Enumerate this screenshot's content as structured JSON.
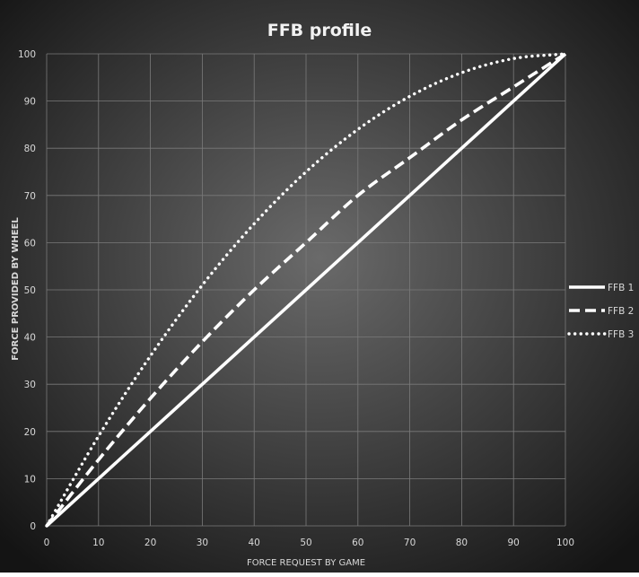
{
  "chart_data": {
    "type": "line",
    "title": "FFB profile",
    "xlabel": "FORCE REQUEST BY GAME",
    "ylabel": "FORCE PROVIDED BY WHEEL",
    "xlim": [
      0,
      100
    ],
    "ylim": [
      0,
      100
    ],
    "x_ticks": [
      0,
      10,
      20,
      30,
      40,
      50,
      60,
      70,
      80,
      90,
      100
    ],
    "y_ticks": [
      0,
      10,
      20,
      30,
      40,
      50,
      60,
      70,
      80,
      90,
      100
    ],
    "grid": true,
    "legend_position": "right",
    "x": [
      0,
      10,
      20,
      30,
      40,
      50,
      60,
      70,
      80,
      90,
      100
    ],
    "series": [
      {
        "name": "FFB 1",
        "line_style": "solid",
        "values": [
          0,
          10,
          20,
          30,
          40,
          50,
          60,
          70,
          80,
          90,
          100
        ]
      },
      {
        "name": "FFB 2",
        "line_style": "dashed",
        "values": [
          0,
          14,
          27,
          39,
          50,
          60,
          70,
          78,
          86,
          93,
          100
        ]
      },
      {
        "name": "FFB 3",
        "line_style": "dotted",
        "values": [
          0,
          19,
          36,
          51,
          64,
          75,
          84,
          91,
          96,
          99,
          100
        ]
      }
    ],
    "colors": {
      "series": "#ffffff",
      "text": "#d8d8d8",
      "title": "#f2f2f2",
      "grid": "#7a7a7a",
      "background_center": "#6a6a6a",
      "background_edge": "#141414"
    }
  }
}
